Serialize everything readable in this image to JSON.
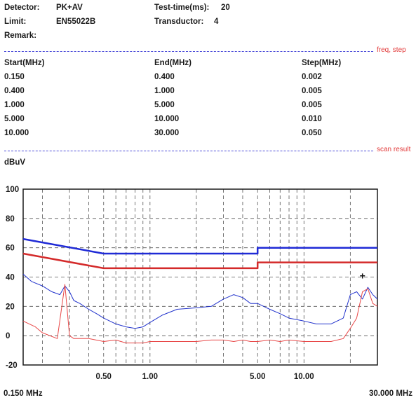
{
  "header": {
    "detector_label": "Detector:",
    "detector_value": "PK+AV",
    "limit_label": "Limit:",
    "limit_value": "EN55022B",
    "remark_label": "Remark:",
    "testtime_label": "Test-time(ms):",
    "testtime_value": "20",
    "transductor_label": "Transductor:",
    "transductor_value": "4"
  },
  "sections": {
    "freq_step_label": "freq, step",
    "scan_result_label": "scan result"
  },
  "freq_table": {
    "headers": [
      "Start(MHz)",
      "End(MHz)",
      "Step(MHz)"
    ],
    "rows": [
      [
        "0.150",
        "0.400",
        "0.002"
      ],
      [
        "0.400",
        "1.000",
        "0.005"
      ],
      [
        "1.000",
        "5.000",
        "0.005"
      ],
      [
        "5.000",
        "10.000",
        "0.010"
      ],
      [
        "10.000",
        "30.000",
        "0.050"
      ]
    ]
  },
  "chart_data": {
    "type": "line",
    "y_unit_label": "dBuV",
    "x_scale": "log",
    "xlim": [
      0.15,
      30
    ],
    "ylim": [
      -20,
      100
    ],
    "y_ticks": [
      "100",
      "80",
      "60",
      "40",
      "20",
      "0",
      "-20"
    ],
    "x_ticks": [
      "0.50",
      "1.00",
      "5.00",
      "10.00"
    ],
    "x_start_label": "0.150 MHz",
    "x_end_label": "30.000 MHz",
    "grid": true,
    "colors": {
      "quasi_peak": "#1f2ad6",
      "average": "#d42a2a",
      "peak_trace": "#2233cc",
      "avg_trace": "#e84848"
    },
    "series": [
      {
        "x": [
          0.15,
          0.5,
          5,
          5,
          30
        ],
        "y": [
          66,
          56,
          56,
          60,
          60
        ]
      },
      {
        "x": [
          0.15,
          0.5,
          5,
          5,
          30
        ],
        "y": [
          56,
          46,
          46,
          50,
          50
        ]
      },
      {
        "x": [
          0.15,
          0.17,
          0.2,
          0.23,
          0.26,
          0.28,
          0.3,
          0.32,
          0.35,
          0.4,
          0.45,
          0.5,
          0.6,
          0.7,
          0.8,
          0.9,
          1.0,
          1.2,
          1.5,
          2.0,
          2.5,
          3.0,
          3.5,
          4.0,
          4.5,
          5.0,
          6.0,
          7.0,
          8.0,
          10.0,
          12.0,
          15.0,
          18.0,
          20.0,
          22.0,
          24.0,
          26.0,
          28.0,
          30.0
        ],
        "y": [
          42,
          37,
          34,
          30,
          28,
          34,
          30,
          24,
          22,
          18,
          15,
          12,
          8,
          6,
          5,
          6,
          9,
          14,
          18,
          19,
          20,
          25,
          28,
          26,
          22,
          22,
          18,
          15,
          12,
          10,
          8,
          8,
          12,
          28,
          30,
          25,
          33,
          28,
          25
        ]
      },
      {
        "x": [
          0.15,
          0.18,
          0.2,
          0.25,
          0.28,
          0.3,
          0.32,
          0.4,
          0.5,
          0.6,
          0.7,
          0.8,
          0.9,
          1.0,
          1.2,
          1.5,
          2.0,
          2.5,
          3.0,
          3.5,
          4.0,
          4.5,
          5.0,
          6.0,
          7.0,
          8.0,
          10.0,
          12.0,
          15.0,
          18.0,
          20.0,
          22.0,
          24.0,
          26.0,
          28.0,
          30.0
        ],
        "y": [
          10,
          6,
          2,
          -2,
          35,
          0,
          -2,
          -2,
          -4,
          -3,
          -5,
          -5,
          -5,
          -4,
          -4,
          -4,
          -4,
          -3,
          -3,
          -4,
          -3,
          -4,
          -4,
          -3,
          -4,
          -3,
          -4,
          -4,
          -4,
          -2,
          5,
          12,
          30,
          32,
          22,
          20
        ]
      }
    ],
    "marker": {
      "x": 24,
      "y": 41,
      "symbol": "+"
    }
  }
}
